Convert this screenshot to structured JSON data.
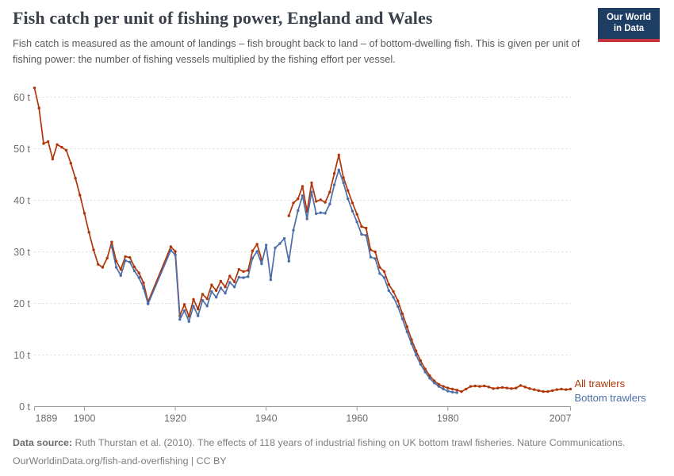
{
  "header": {
    "title": "Fish catch per unit of fishing power, England and Wales",
    "subtitle": "Fish catch is measured as the amount of landings – fish brought back to land – of bottom-dwelling fish. This is given per unit of fishing power: the number of fishing vessels multiplied by the fishing effort per vessel.",
    "logo": {
      "line1": "Our World",
      "line2": "in Data",
      "bg_color": "#1d3d63",
      "stripe_color": "#c5353e"
    }
  },
  "chart_data": {
    "type": "line",
    "title": "Fish catch per unit of fishing power, England and Wales",
    "unit": "t",
    "x_range": [
      1889,
      2007
    ],
    "y_range": [
      0,
      60
    ],
    "x_ticks": [
      1889,
      1900,
      1920,
      1940,
      1960,
      1980,
      2007
    ],
    "y_ticks": [
      0,
      10,
      20,
      30,
      40,
      50,
      60
    ],
    "y_tick_suffix": " t",
    "grid": "horizontal-dashed",
    "legend_position": "right-of-line-end",
    "axis_color": "#9a9a9a",
    "grid_color": "#d9d9d9",
    "tick_label_color": "#6e6e6e",
    "series": [
      {
        "name": "All trawlers",
        "color": "#b13507",
        "segments": [
          [
            [
              1889,
              61.8
            ],
            [
              1890,
              57.9
            ],
            [
              1891,
              51.0
            ],
            [
              1892,
              51.4
            ],
            [
              1893,
              48.0
            ],
            [
              1894,
              50.8
            ],
            [
              1895,
              50.3
            ],
            [
              1896,
              49.7
            ],
            [
              1897,
              47.2
            ],
            [
              1898,
              44.3
            ],
            [
              1899,
              41.0
            ],
            [
              1900,
              37.5
            ],
            [
              1901,
              33.8
            ],
            [
              1902,
              30.4
            ],
            [
              1903,
              27.6
            ],
            [
              1904,
              27.0
            ],
            [
              1905,
              28.8
            ],
            [
              1906,
              31.9
            ],
            [
              1907,
              28.2
            ],
            [
              1908,
              26.6
            ],
            [
              1909,
              29.1
            ],
            [
              1910,
              28.9
            ],
            [
              1911,
              27.1
            ],
            [
              1912,
              25.9
            ],
            [
              1913,
              24.0
            ],
            [
              1914,
              20.3
            ],
            [
              1919,
              31.0
            ],
            [
              1920,
              30.1
            ],
            [
              1921,
              17.6
            ],
            [
              1922,
              19.8
            ],
            [
              1923,
              17.5
            ],
            [
              1924,
              20.8
            ],
            [
              1925,
              18.9
            ],
            [
              1926,
              21.8
            ],
            [
              1927,
              20.9
            ],
            [
              1928,
              23.6
            ],
            [
              1929,
              22.5
            ],
            [
              1930,
              24.3
            ],
            [
              1931,
              23.2
            ],
            [
              1932,
              25.3
            ],
            [
              1933,
              24.2
            ],
            [
              1934,
              26.6
            ],
            [
              1935,
              26.2
            ],
            [
              1936,
              26.4
            ],
            [
              1937,
              30.2
            ],
            [
              1938,
              31.5
            ],
            [
              1939,
              28.5
            ]
          ],
          [
            [
              1945,
              37.0
            ],
            [
              1946,
              39.5
            ],
            [
              1947,
              40.3
            ],
            [
              1948,
              42.7
            ],
            [
              1949,
              37.8
            ],
            [
              1950,
              43.4
            ],
            [
              1951,
              39.8
            ],
            [
              1952,
              40.1
            ],
            [
              1953,
              39.6
            ],
            [
              1954,
              41.6
            ],
            [
              1955,
              45.2
            ],
            [
              1956,
              48.8
            ],
            [
              1957,
              44.4
            ],
            [
              1958,
              41.9
            ],
            [
              1959,
              39.5
            ],
            [
              1960,
              37.3
            ],
            [
              1961,
              34.9
            ],
            [
              1962,
              34.6
            ],
            [
              1963,
              30.4
            ],
            [
              1964,
              30.0
            ],
            [
              1965,
              27.0
            ],
            [
              1966,
              26.2
            ],
            [
              1967,
              23.7
            ],
            [
              1968,
              22.3
            ],
            [
              1969,
              20.5
            ],
            [
              1970,
              18.0
            ],
            [
              1971,
              15.5
            ],
            [
              1972,
              13.0
            ],
            [
              1973,
              10.8
            ],
            [
              1974,
              8.9
            ],
            [
              1975,
              7.3
            ],
            [
              1976,
              6.0
            ],
            [
              1977,
              5.0
            ],
            [
              1978,
              4.3
            ],
            [
              1979,
              3.9
            ],
            [
              1980,
              3.6
            ],
            [
              1981,
              3.4
            ],
            [
              1982,
              3.2
            ],
            [
              1983,
              2.9
            ],
            [
              1984,
              3.4
            ],
            [
              1985,
              3.9
            ],
            [
              1986,
              4.0
            ],
            [
              1987,
              3.9
            ],
            [
              1988,
              4.0
            ],
            [
              1989,
              3.8
            ],
            [
              1990,
              3.5
            ],
            [
              1991,
              3.6
            ],
            [
              1992,
              3.7
            ],
            [
              1993,
              3.6
            ],
            [
              1994,
              3.5
            ],
            [
              1995,
              3.6
            ],
            [
              1996,
              4.1
            ],
            [
              1997,
              3.8
            ],
            [
              1998,
              3.5
            ],
            [
              1999,
              3.3
            ],
            [
              2000,
              3.1
            ],
            [
              2001,
              2.9
            ],
            [
              2002,
              2.9
            ],
            [
              2003,
              3.1
            ],
            [
              2004,
              3.3
            ],
            [
              2005,
              3.4
            ],
            [
              2006,
              3.3
            ],
            [
              2007,
              3.4
            ]
          ]
        ]
      },
      {
        "name": "Bottom trawlers",
        "color": "#4c6ea8",
        "segments": [
          [
            [
              1906,
              31.0
            ],
            [
              1907,
              27.0
            ],
            [
              1908,
              25.4
            ],
            [
              1909,
              28.3
            ],
            [
              1910,
              28.0
            ],
            [
              1911,
              26.3
            ],
            [
              1912,
              25.0
            ],
            [
              1913,
              23.0
            ],
            [
              1914,
              19.9
            ],
            [
              1919,
              30.3
            ],
            [
              1920,
              29.4
            ],
            [
              1921,
              16.9
            ],
            [
              1922,
              18.6
            ],
            [
              1923,
              16.5
            ],
            [
              1924,
              19.5
            ],
            [
              1925,
              17.6
            ],
            [
              1926,
              20.6
            ],
            [
              1927,
              19.5
            ],
            [
              1928,
              22.3
            ],
            [
              1929,
              21.2
            ],
            [
              1930,
              23.0
            ],
            [
              1931,
              22.0
            ],
            [
              1932,
              24.1
            ],
            [
              1933,
              23.2
            ],
            [
              1934,
              25.1
            ],
            [
              1935,
              25.0
            ],
            [
              1936,
              25.2
            ],
            [
              1937,
              28.8
            ],
            [
              1938,
              30.1
            ],
            [
              1939,
              27.7
            ],
            [
              1940,
              31.3
            ],
            [
              1941,
              24.6
            ],
            [
              1942,
              30.8
            ],
            [
              1943,
              31.6
            ],
            [
              1944,
              32.6
            ],
            [
              1945,
              28.2
            ],
            [
              1946,
              34.2
            ],
            [
              1947,
              38.0
            ],
            [
              1948,
              40.9
            ],
            [
              1949,
              36.4
            ],
            [
              1950,
              41.6
            ],
            [
              1951,
              37.4
            ],
            [
              1952,
              37.6
            ],
            [
              1953,
              37.5
            ],
            [
              1954,
              39.3
            ],
            [
              1955,
              43.0
            ],
            [
              1956,
              45.9
            ],
            [
              1957,
              43.4
            ],
            [
              1958,
              40.3
            ],
            [
              1959,
              37.9
            ],
            [
              1960,
              35.8
            ],
            [
              1961,
              33.4
            ],
            [
              1962,
              33.2
            ],
            [
              1963,
              29.0
            ],
            [
              1964,
              28.7
            ],
            [
              1965,
              25.8
            ],
            [
              1966,
              25.0
            ],
            [
              1967,
              22.5
            ],
            [
              1968,
              21.2
            ],
            [
              1969,
              19.4
            ],
            [
              1970,
              17.0
            ],
            [
              1971,
              14.5
            ],
            [
              1972,
              12.2
            ],
            [
              1973,
              10.0
            ],
            [
              1974,
              8.2
            ],
            [
              1975,
              6.7
            ],
            [
              1976,
              5.5
            ],
            [
              1977,
              4.6
            ],
            [
              1978,
              3.9
            ],
            [
              1979,
              3.4
            ],
            [
              1980,
              3.0
            ],
            [
              1981,
              2.8
            ],
            [
              1982,
              2.7
            ]
          ]
        ]
      }
    ]
  },
  "footer": {
    "source_label": "Data source:",
    "source_text": " Ruth Thurstan et al. (2010). The effects of 118 years of industrial fishing on UK bottom trawl fisheries. Nature Communications.",
    "link_line": "OurWorldinData.org/fish-and-overfishing | CC BY"
  }
}
